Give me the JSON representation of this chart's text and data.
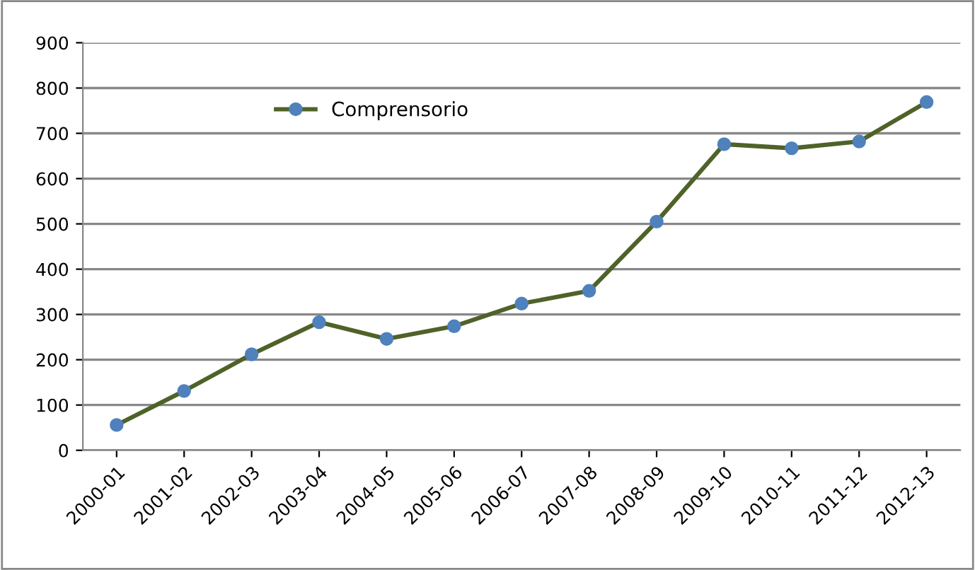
{
  "chart_data": {
    "type": "line",
    "categories": [
      "2000-01",
      "2001-02",
      "2002-03",
      "2003-04",
      "2004-05",
      "2005-06",
      "2006-07",
      "2007-08",
      "2008-09",
      "2009-10",
      "2010-11",
      "2011-12",
      "2012-13"
    ],
    "series": [
      {
        "name": "Comprensorio",
        "color": "#4f6228",
        "colors": [
          "#4f81bd",
          "#4f81bd",
          "#4f81bd",
          "#4f81bd",
          "#4f81bd",
          "#4f81bd",
          "#4f81bd",
          "#4f81bd",
          "#4f81bd",
          "#4f81bd",
          "#4f81bd",
          "#4f81bd",
          "#4f81bd"
        ],
        "values": [
          56,
          131,
          212,
          283,
          246,
          274,
          324,
          352,
          505,
          676,
          667,
          682,
          769
        ]
      }
    ],
    "ylim": [
      0,
      900
    ],
    "yticks": [
      0,
      100,
      200,
      300,
      400,
      500,
      600,
      700,
      800,
      900
    ],
    "grid": "y",
    "legend": "top left",
    "marker": "circle",
    "line_style": "solid"
  }
}
